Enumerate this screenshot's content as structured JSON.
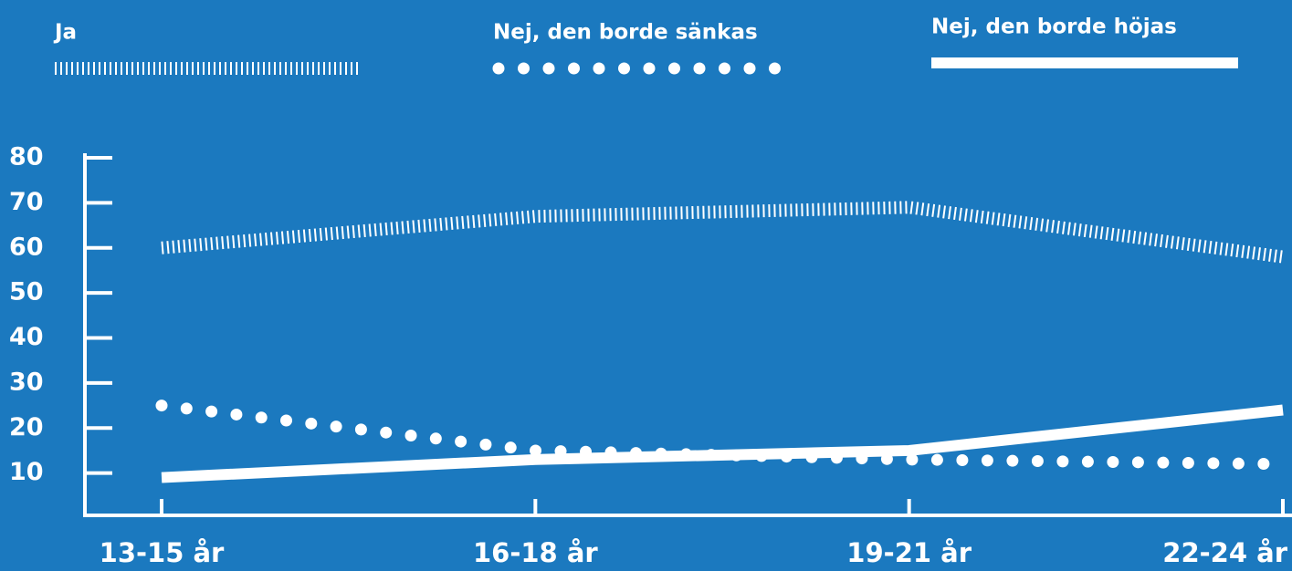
{
  "chart_data": {
    "type": "line",
    "categories": [
      "13-15 år",
      "16-18 år",
      "19-21 år",
      "22-24 år"
    ],
    "series": [
      {
        "name": "Ja",
        "color": "#ffffff",
        "values": [
          60,
          67,
          69,
          58
        ]
      },
      {
        "name": "Nej, den borde sänkas",
        "color": "#ffffff",
        "values": [
          25,
          15,
          13,
          12
        ]
      },
      {
        "name": "Nej, den borde höjas",
        "color": "#ffffff",
        "values": [
          9,
          13,
          15,
          24
        ]
      }
    ],
    "ylim": [
      0,
      80
    ],
    "yticks": [
      10,
      20,
      30,
      40,
      50,
      60,
      70,
      80
    ],
    "legend": "top"
  }
}
